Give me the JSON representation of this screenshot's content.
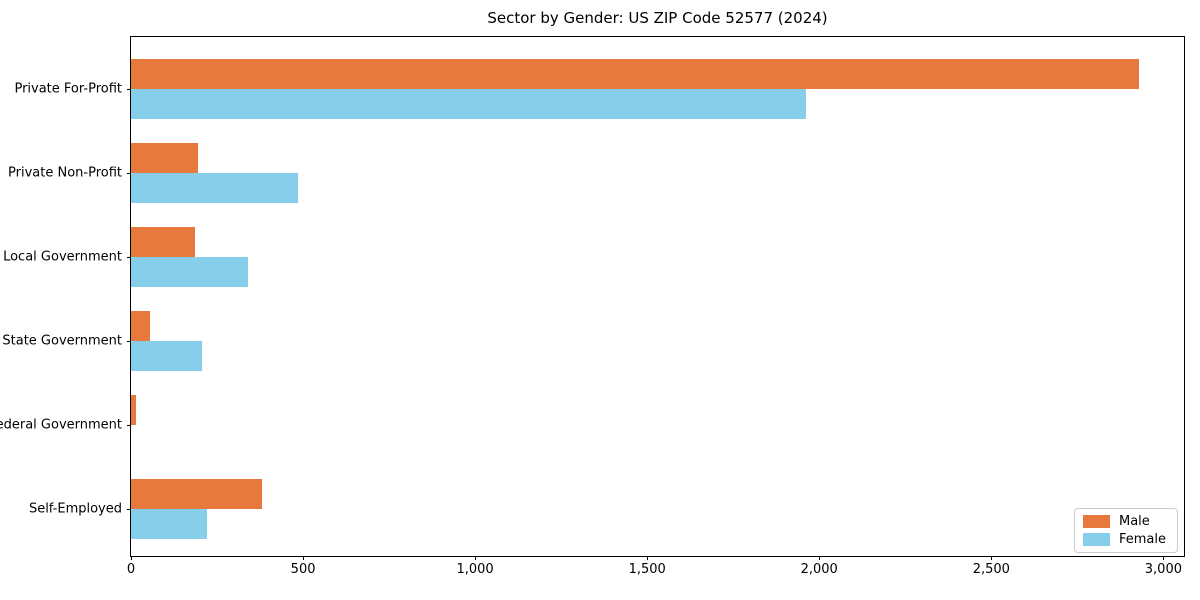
{
  "chart_data": {
    "type": "bar",
    "orientation": "horizontal",
    "title": "Sector by Gender: US ZIP Code 52577 (2024)",
    "categories": [
      "Private For-Profit",
      "Private Non-Profit",
      "Local Government",
      "State Government",
      "Federal Government",
      "Self-Employed"
    ],
    "series": [
      {
        "name": "Male",
        "color": "#E8793C",
        "values": [
          2930,
          195,
          185,
          55,
          15,
          380
        ]
      },
      {
        "name": "Female",
        "color": "#87CEEB",
        "values": [
          1960,
          485,
          340,
          205,
          0,
          220
        ]
      }
    ],
    "xlabel": "",
    "ylabel": "",
    "xlim": [
      0,
      3060
    ],
    "x_ticks": [
      0,
      500,
      1000,
      1500,
      2000,
      2500,
      3000
    ],
    "x_tick_labels": [
      "0",
      "500",
      "1,000",
      "1,500",
      "2,000",
      "2,500",
      "3,000"
    ],
    "grid": false,
    "legend_position": "lower right",
    "frame_color": "#000000"
  }
}
